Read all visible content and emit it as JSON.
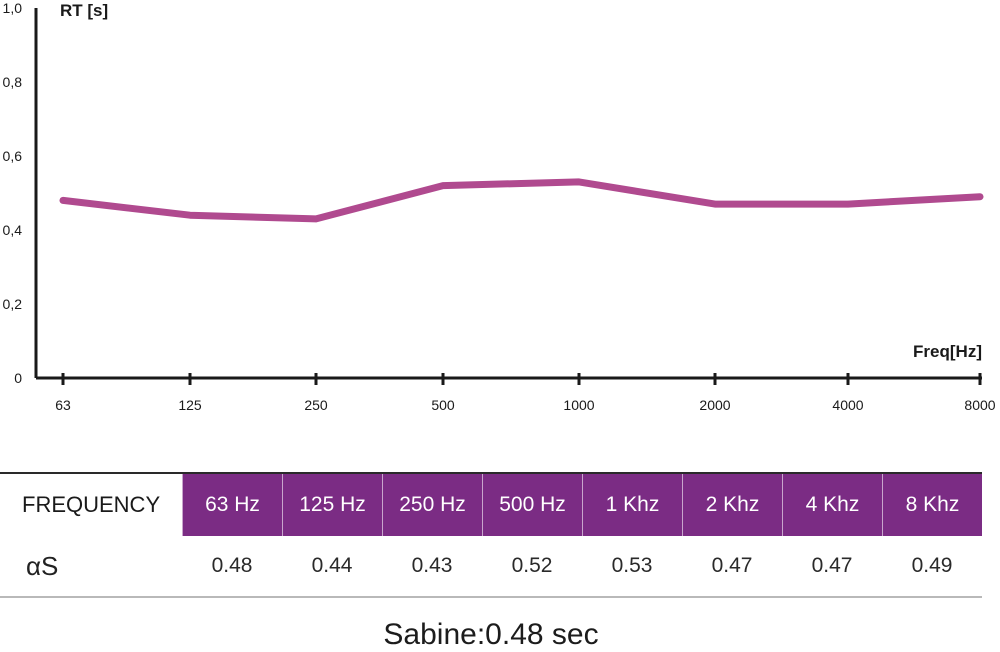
{
  "chart_data": {
    "type": "line",
    "ylabel": "RT [s]",
    "xlabel": "Freq[Hz]",
    "ylim": [
      0,
      1.0
    ],
    "y_ticks": [
      "0",
      "0,2",
      "0,4",
      "0,6",
      "0,8",
      "1,0"
    ],
    "categories": [
      "63",
      "125",
      "250",
      "500",
      "1000",
      "2000",
      "4000",
      "8000"
    ],
    "values": [
      0.48,
      0.44,
      0.43,
      0.52,
      0.53,
      0.47,
      0.47,
      0.49
    ],
    "line_color": "#b04a8f",
    "grid": false
  },
  "table": {
    "header_label": "FREQUENCY",
    "header_color": "#7b2c84",
    "frequencies": [
      "63 Hz",
      "125 Hz",
      "250 Hz",
      "500 Hz",
      "1 Khz",
      "2 Khz",
      "4 Khz",
      "8 Khz"
    ],
    "row_label": "αS",
    "values": [
      "0.48",
      "0.44",
      "0.43",
      "0.52",
      "0.53",
      "0.47",
      "0.47",
      "0.49"
    ]
  },
  "sabine": "Sabine:0.48 sec"
}
